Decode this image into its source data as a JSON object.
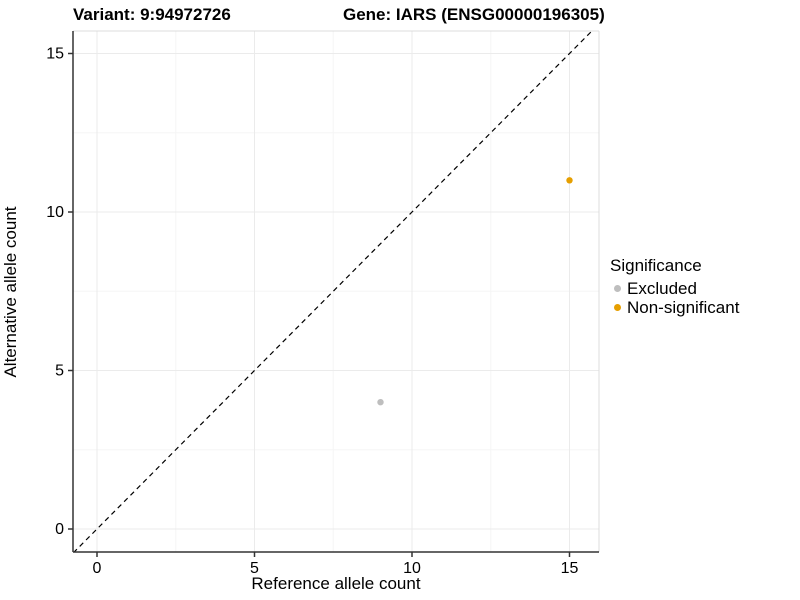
{
  "chart_data": {
    "type": "scatter",
    "titles": {
      "left": "Variant: 9:94972726",
      "right": "Gene: IARS (ENSG00000196305)"
    },
    "xlabel": "Reference allele count",
    "ylabel": "Alternative allele count",
    "x_ticks": [
      0,
      5,
      10,
      15
    ],
    "y_ticks": [
      0,
      5,
      10,
      15
    ],
    "x_minor_ticks": [
      2.5,
      7.5,
      12.5
    ],
    "y_minor_ticks": [
      2.5,
      7.5,
      12.5
    ],
    "xlim": [
      -0.75,
      15.75
    ],
    "ylim": [
      -0.75,
      15.75
    ],
    "grid": true,
    "reference_line": {
      "type": "identity-diagonal",
      "style": "dashed",
      "color": "#000000"
    },
    "series": [
      {
        "name": "Excluded",
        "color": "#BEBEBE",
        "points": [
          {
            "x": 9,
            "y": 4
          }
        ]
      },
      {
        "name": "Non-significant",
        "color": "#E69F00",
        "points": [
          {
            "x": 15,
            "y": 11
          }
        ]
      }
    ],
    "legend": {
      "title": "Significance",
      "position": "right"
    }
  }
}
